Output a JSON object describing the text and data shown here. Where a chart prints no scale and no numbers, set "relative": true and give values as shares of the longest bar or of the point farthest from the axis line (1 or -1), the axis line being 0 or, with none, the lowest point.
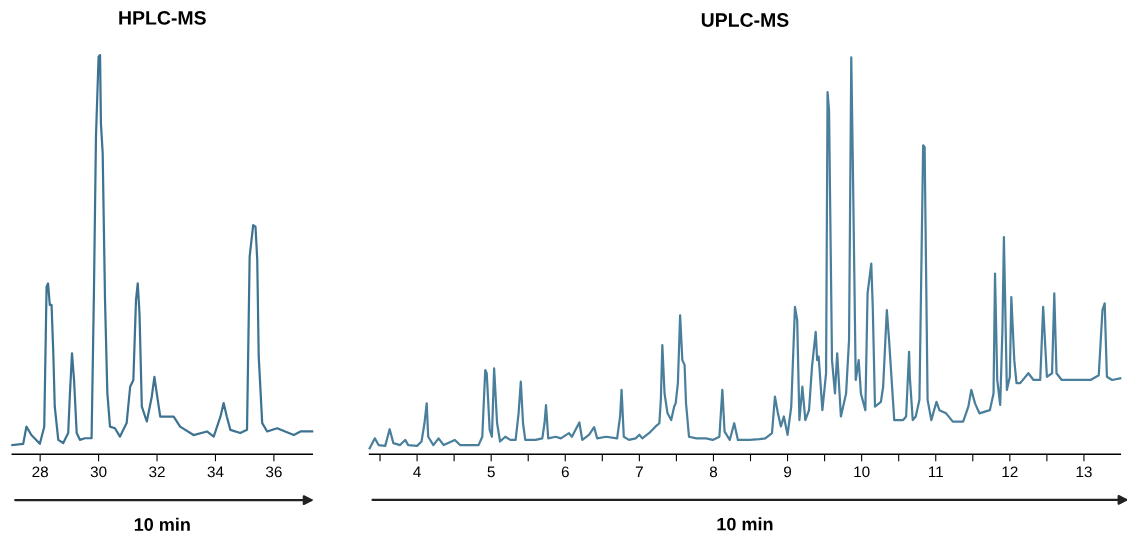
{
  "chart_data": [
    {
      "type": "line",
      "title": "HPLC-MS",
      "relative": true,
      "tick_labels": "x",
      "color": "#3d7391",
      "annotations": [
        "10 min"
      ],
      "xlim": [
        27.05,
        37.31
      ],
      "xticks": [
        28,
        30,
        32,
        34,
        36
      ],
      "x": [
        27.05,
        27.42,
        27.53,
        27.7,
        27.99,
        28.14,
        28.22,
        28.27,
        28.33,
        28.39,
        28.45,
        28.5,
        28.62,
        28.79,
        28.96,
        29.02,
        29.09,
        29.16,
        29.25,
        29.36,
        29.53,
        29.76,
        29.84,
        29.91,
        30.0,
        30.05,
        30.08,
        30.14,
        30.22,
        30.3,
        30.39,
        30.56,
        30.73,
        30.96,
        31.08,
        31.19,
        31.28,
        31.34,
        31.4,
        31.48,
        31.65,
        31.82,
        31.91,
        31.99,
        32.11,
        32.34,
        32.57,
        32.79,
        33.25,
        33.71,
        33.94,
        34.17,
        34.28,
        34.39,
        34.51,
        34.85,
        35.08,
        35.17,
        35.29,
        35.37,
        35.43,
        35.48,
        35.6,
        35.77,
        36.11,
        36.68,
        36.91,
        37.31
      ],
      "values": [
        0.023,
        0.026,
        0.069,
        0.048,
        0.026,
        0.069,
        0.42,
        0.428,
        0.374,
        0.374,
        0.253,
        0.119,
        0.036,
        0.028,
        0.053,
        0.153,
        0.253,
        0.186,
        0.053,
        0.036,
        0.04,
        0.04,
        0.403,
        0.795,
        0.996,
        1.0,
        0.829,
        0.754,
        0.386,
        0.153,
        0.069,
        0.065,
        0.044,
        0.078,
        0.169,
        0.186,
        0.386,
        0.428,
        0.353,
        0.119,
        0.082,
        0.144,
        0.194,
        0.153,
        0.094,
        0.094,
        0.094,
        0.069,
        0.048,
        0.057,
        0.044,
        0.094,
        0.128,
        0.094,
        0.061,
        0.053,
        0.061,
        0.495,
        0.574,
        0.57,
        0.487,
        0.245,
        0.078,
        0.057,
        0.065,
        0.048,
        0.057,
        0.057
      ]
    },
    {
      "type": "line",
      "title": "UPLC-MS",
      "relative": true,
      "tick_labels": "x",
      "color": "#4a7f9c",
      "annotations": [
        "10 min"
      ],
      "xlim": [
        3.36,
        13.49
      ],
      "xticks": [
        {
          "value": 3.5,
          "label": null
        },
        4,
        {
          "value": 4.5,
          "label": null
        },
        5,
        {
          "value": 5.5,
          "label": null
        },
        6,
        {
          "value": 6.5,
          "label": null
        },
        7,
        {
          "value": 7.5,
          "label": null
        },
        8,
        {
          "value": 8.5,
          "label": null
        },
        9,
        {
          "value": 9.5,
          "label": null
        },
        10,
        {
          "value": 10.5,
          "label": null
        },
        11,
        {
          "value": 11.5,
          "label": null
        },
        12,
        {
          "value": 12.5,
          "label": null
        },
        13
      ],
      "x": [
        3.36,
        3.43,
        3.48,
        3.57,
        3.63,
        3.68,
        3.77,
        3.84,
        3.88,
        4.0,
        4.06,
        4.1,
        4.13,
        4.15,
        4.22,
        4.29,
        4.36,
        4.51,
        4.58,
        4.83,
        4.88,
        4.92,
        4.94,
        4.98,
        5.01,
        5.04,
        5.08,
        5.12,
        5.19,
        5.26,
        5.33,
        5.37,
        5.4,
        5.43,
        5.46,
        5.6,
        5.69,
        5.72,
        5.74,
        5.77,
        5.87,
        5.94,
        6.05,
        6.09,
        6.19,
        6.23,
        6.32,
        6.39,
        6.43,
        6.55,
        6.7,
        6.74,
        6.76,
        6.79,
        6.86,
        6.95,
        7.0,
        7.04,
        7.13,
        7.22,
        7.27,
        7.29,
        7.31,
        7.34,
        7.38,
        7.43,
        7.47,
        7.49,
        7.52,
        7.55,
        7.58,
        7.61,
        7.63,
        7.67,
        7.77,
        7.9,
        7.99,
        8.08,
        8.12,
        8.15,
        8.22,
        8.28,
        8.33,
        8.49,
        8.62,
        8.7,
        8.79,
        8.83,
        8.87,
        8.91,
        8.95,
        9.0,
        9.05,
        9.1,
        9.13,
        9.16,
        9.2,
        9.24,
        9.29,
        9.33,
        9.38,
        9.4,
        9.42,
        9.47,
        9.52,
        9.54,
        9.56,
        9.6,
        9.64,
        9.67,
        9.72,
        9.79,
        9.83,
        9.86,
        9.88,
        9.92,
        9.96,
        9.99,
        10.05,
        10.08,
        10.13,
        10.15,
        10.18,
        10.26,
        10.29,
        10.34,
        10.37,
        10.44,
        10.56,
        10.6,
        10.64,
        10.65,
        10.69,
        10.73,
        10.78,
        10.83,
        10.85,
        10.89,
        10.94,
        11.01,
        11.05,
        11.14,
        11.23,
        11.37,
        11.44,
        11.48,
        11.53,
        11.59,
        11.73,
        11.78,
        11.8,
        11.83,
        11.87,
        11.9,
        11.92,
        11.96,
        12.0,
        12.02,
        12.06,
        12.09,
        12.14,
        12.25,
        12.32,
        12.41,
        12.45,
        12.5,
        12.57,
        12.6,
        12.63,
        12.7,
        12.86,
        13.09,
        13.2,
        13.25,
        13.28,
        13.31,
        13.38,
        13.49
      ],
      "values": [
        0.015,
        0.04,
        0.023,
        0.021,
        0.063,
        0.028,
        0.023,
        0.036,
        0.023,
        0.021,
        0.032,
        0.078,
        0.128,
        0.044,
        0.023,
        0.04,
        0.023,
        0.036,
        0.023,
        0.023,
        0.044,
        0.212,
        0.204,
        0.061,
        0.044,
        0.216,
        0.078,
        0.032,
        0.044,
        0.036,
        0.036,
        0.103,
        0.183,
        0.078,
        0.036,
        0.036,
        0.04,
        0.078,
        0.124,
        0.04,
        0.044,
        0.04,
        0.053,
        0.044,
        0.08,
        0.036,
        0.049,
        0.068,
        0.04,
        0.044,
        0.04,
        0.095,
        0.162,
        0.044,
        0.036,
        0.04,
        0.049,
        0.04,
        0.053,
        0.07,
        0.078,
        0.137,
        0.275,
        0.153,
        0.103,
        0.086,
        0.12,
        0.128,
        0.179,
        0.35,
        0.237,
        0.225,
        0.128,
        0.044,
        0.04,
        0.04,
        0.036,
        0.044,
        0.162,
        0.057,
        0.036,
        0.078,
        0.036,
        0.036,
        0.038,
        0.04,
        0.053,
        0.145,
        0.103,
        0.07,
        0.095,
        0.049,
        0.12,
        0.371,
        0.338,
        0.086,
        0.17,
        0.086,
        0.111,
        0.22,
        0.308,
        0.237,
        0.246,
        0.111,
        0.204,
        0.912,
        0.866,
        0.237,
        0.153,
        0.254,
        0.095,
        0.153,
        0.288,
        1.0,
        0.749,
        0.187,
        0.237,
        0.153,
        0.111,
        0.405,
        0.48,
        0.371,
        0.12,
        0.132,
        0.17,
        0.363,
        0.288,
        0.086,
        0.086,
        0.095,
        0.258,
        0.195,
        0.086,
        0.095,
        0.137,
        0.778,
        0.774,
        0.137,
        0.086,
        0.132,
        0.111,
        0.103,
        0.082,
        0.082,
        0.12,
        0.162,
        0.128,
        0.103,
        0.111,
        0.153,
        0.455,
        0.187,
        0.124,
        0.313,
        0.547,
        0.162,
        0.195,
        0.396,
        0.237,
        0.179,
        0.179,
        0.204,
        0.187,
        0.187,
        0.371,
        0.195,
        0.204,
        0.405,
        0.204,
        0.187,
        0.187,
        0.187,
        0.199,
        0.363,
        0.38,
        0.195,
        0.187,
        0.191
      ]
    }
  ]
}
